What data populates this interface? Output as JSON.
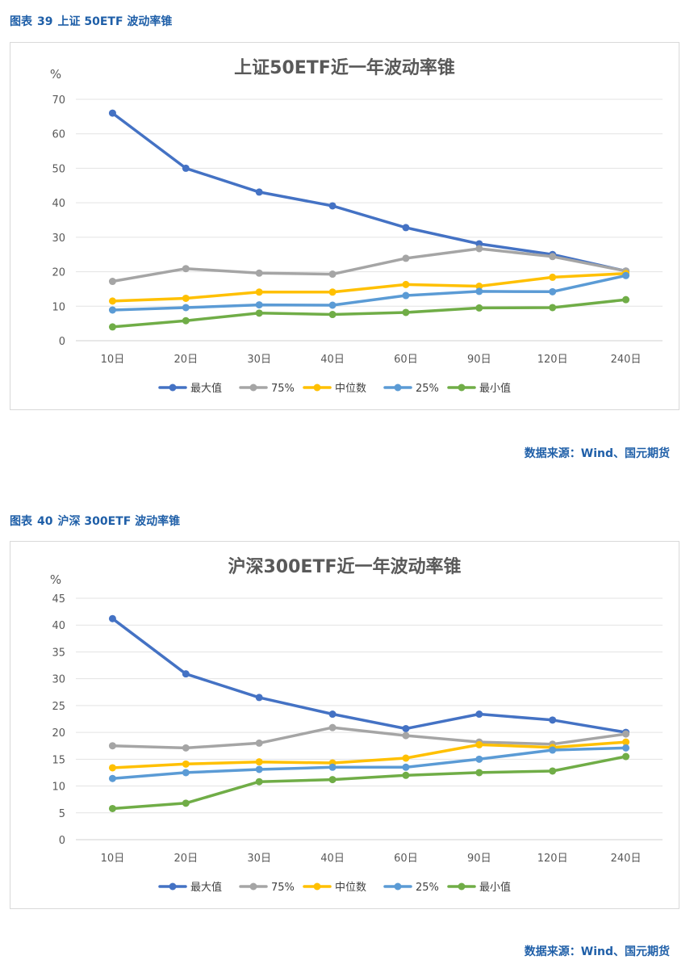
{
  "figures": [
    {
      "caption_prefix": "图表",
      "caption_number": "39",
      "caption_text": "上证 50ETF 波动率锥",
      "source": "数据来源：Wind、国元期货"
    },
    {
      "caption_prefix": "图表",
      "caption_number": "40",
      "caption_text": "沪深 300ETF 波动率锥",
      "source": "数据来源：Wind、国元期货"
    }
  ],
  "chart_data": [
    {
      "type": "line",
      "title": "上证50ETF近一年波动率锥",
      "ylabel": "%",
      "xlabel": "",
      "ylim": [
        0,
        70
      ],
      "yticks": [
        0,
        10,
        20,
        30,
        40,
        50,
        60,
        70
      ],
      "grid": true,
      "legend_position": "bottom",
      "categories": [
        "10日",
        "20日",
        "30日",
        "40日",
        "60日",
        "90日",
        "120日",
        "240日"
      ],
      "series": [
        {
          "name": "最大值",
          "color": "#4472c4",
          "values": [
            66.0,
            50.0,
            43.1,
            39.1,
            32.8,
            28.1,
            25.0,
            20.2
          ]
        },
        {
          "name": "75%",
          "color": "#a5a5a5",
          "values": [
            17.2,
            20.9,
            19.6,
            19.3,
            23.9,
            26.7,
            24.4,
            20.2
          ]
        },
        {
          "name": "中位数",
          "color": "#ffc000",
          "values": [
            11.5,
            12.3,
            14.1,
            14.1,
            16.3,
            15.8,
            18.4,
            19.5
          ]
        },
        {
          "name": "25%",
          "color": "#5b9bd5",
          "values": [
            8.9,
            9.6,
            10.4,
            10.3,
            13.1,
            14.3,
            14.2,
            18.9
          ]
        },
        {
          "name": "最小值",
          "color": "#70ad47",
          "values": [
            4.0,
            5.8,
            8.0,
            7.6,
            8.2,
            9.5,
            9.6,
            11.9
          ]
        }
      ]
    },
    {
      "type": "line",
      "title": "沪深300ETF近一年波动率锥",
      "ylabel": "%",
      "xlabel": "",
      "ylim": [
        0,
        45
      ],
      "yticks": [
        0,
        5,
        10,
        15,
        20,
        25,
        30,
        35,
        40,
        45
      ],
      "grid": true,
      "legend_position": "bottom",
      "categories": [
        "10日",
        "20日",
        "30日",
        "40日",
        "60日",
        "90日",
        "120日",
        "240日"
      ],
      "series": [
        {
          "name": "最大值",
          "color": "#4472c4",
          "values": [
            41.2,
            30.9,
            26.5,
            23.4,
            20.7,
            23.4,
            22.3,
            20.0
          ]
        },
        {
          "name": "75%",
          "color": "#a5a5a5",
          "values": [
            17.5,
            17.1,
            18.0,
            20.9,
            19.4,
            18.2,
            17.8,
            19.7
          ]
        },
        {
          "name": "中位数",
          "color": "#ffc000",
          "values": [
            13.4,
            14.1,
            14.5,
            14.3,
            15.2,
            17.7,
            17.2,
            18.2
          ]
        },
        {
          "name": "25%",
          "color": "#5b9bd5",
          "values": [
            11.4,
            12.5,
            13.1,
            13.5,
            13.5,
            15.0,
            16.7,
            17.1
          ]
        },
        {
          "name": "最小值",
          "color": "#70ad47",
          "values": [
            5.8,
            6.8,
            10.8,
            11.2,
            12.0,
            12.5,
            12.8,
            15.5
          ]
        }
      ]
    }
  ]
}
